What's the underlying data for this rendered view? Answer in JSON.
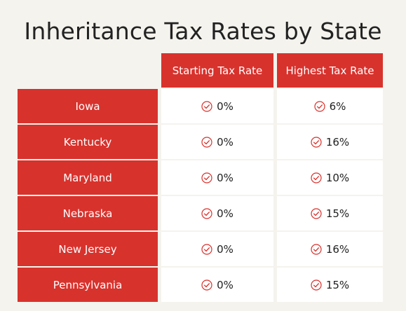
{
  "title": "Inheritance Tax Rates by State",
  "colors": {
    "accent": "#d8322d",
    "background": "#f5f3ed",
    "cell_background": "#ffffff",
    "text": "#222222"
  },
  "chart_data": {
    "type": "table",
    "title": "Inheritance Tax Rates by State",
    "columns": [
      "Starting Tax Rate",
      "Highest Tax Rate"
    ],
    "rows": [
      {
        "state": "Iowa",
        "starting_rate": "0%",
        "highest_rate": "6%"
      },
      {
        "state": "Kentucky",
        "starting_rate": "0%",
        "highest_rate": "16%"
      },
      {
        "state": "Maryland",
        "starting_rate": "0%",
        "highest_rate": "10%"
      },
      {
        "state": "Nebraska",
        "starting_rate": "0%",
        "highest_rate": "15%"
      },
      {
        "state": "New Jersey",
        "starting_rate": "0%",
        "highest_rate": "16%"
      },
      {
        "state": "Pennsylvania",
        "starting_rate": "0%",
        "highest_rate": "15%"
      }
    ]
  },
  "icons": {
    "value_icon": "check-circle-icon"
  }
}
